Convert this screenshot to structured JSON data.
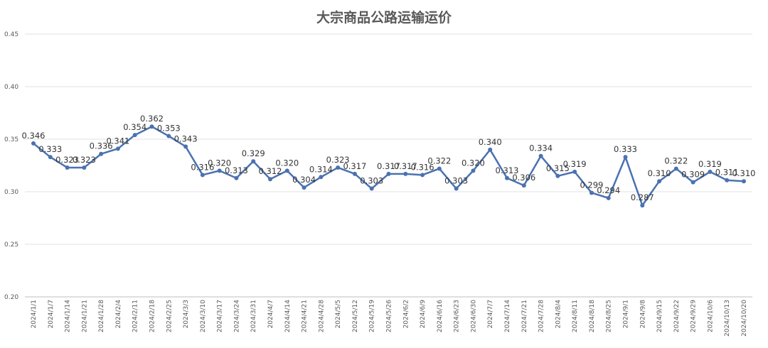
{
  "chart_data": {
    "type": "line",
    "title": "大宗商品公路运输运价",
    "xlabel": "",
    "ylabel": "",
    "ylim": [
      0.2,
      0.45
    ],
    "yticks": [
      "0.20",
      "0.25",
      "0.30",
      "0.35",
      "0.40",
      "0.45"
    ],
    "grid": true,
    "legend": "none",
    "line_color": "#4a72b0",
    "categories": [
      "2024/1/1",
      "2024/1/7",
      "2024/1/14",
      "2024/1/21",
      "2024/1/28",
      "2024/2/4",
      "2024/2/11",
      "2024/2/18",
      "2024/2/25",
      "2024/3/3",
      "2024/3/10",
      "2024/3/17",
      "2024/3/24",
      "2024/3/31",
      "2024/4/7",
      "2024/4/14",
      "2024/4/21",
      "2024/4/28",
      "2024/5/5",
      "2024/5/12",
      "2024/5/19",
      "2024/5/26",
      "2024/6/2",
      "2024/6/9",
      "2024/6/16",
      "2024/6/23",
      "2024/6/30",
      "2024/7/7",
      "2024/7/14",
      "2024/7/21",
      "2024/7/28",
      "2024/8/4",
      "2024/8/11",
      "2024/8/18",
      "2024/8/25",
      "2024/9/1",
      "2024/9/8",
      "2024/9/15",
      "2024/9/22",
      "2024/9/29",
      "2024/10/6",
      "2024/10/13",
      "2024/10/20"
    ],
    "series": [
      {
        "values": [
          0.346,
          0.333,
          0.323,
          0.323,
          0.336,
          0.341,
          0.354,
          0.362,
          0.353,
          0.343,
          0.316,
          0.32,
          0.313,
          0.329,
          0.312,
          0.32,
          0.304,
          0.314,
          0.323,
          0.317,
          0.303,
          0.317,
          0.317,
          0.316,
          0.322,
          0.303,
          0.32,
          0.34,
          0.313,
          0.306,
          0.334,
          0.315,
          0.319,
          0.299,
          0.294,
          0.333,
          0.287,
          0.31,
          0.322,
          0.309,
          0.319,
          0.311,
          0.31
        ],
        "labels": [
          "0.346",
          "0.333",
          "0.323",
          "0.323",
          "0.336",
          "0.341",
          "0.354",
          "0.362",
          "0.353",
          "0.343",
          "0.316",
          "0.320",
          "0.313",
          "0.329",
          "0.312",
          "0.320",
          "0.304",
          "0.314",
          "0.323",
          "0.317",
          "0.303",
          "0.317",
          "0.317",
          "0.316",
          "0.322",
          "0.303",
          "0.320",
          "0.340",
          "0.313",
          "0.306",
          "0.334",
          "0.315",
          "0.319",
          "0.299",
          "0.294",
          "0.333",
          "0.287",
          "0.310",
          "0.322",
          "0.309",
          "0.319",
          "0.311",
          "0.310"
        ]
      }
    ]
  }
}
